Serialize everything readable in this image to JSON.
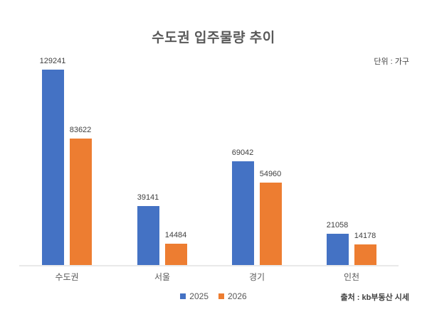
{
  "chart": {
    "title": "수도권 입주물량 추이",
    "unit_label": "단위 : 가구",
    "source_label": "출처 : kb부동산 시세"
  },
  "chart_data": {
    "type": "bar",
    "title": "수도권 입주물량 추이",
    "unit": "가구",
    "source": "kb부동산 시세",
    "categories": [
      "수도권",
      "서울",
      "경기",
      "인천"
    ],
    "series": [
      {
        "name": "2025",
        "color": "#4472C4",
        "values": [
          129241,
          39141,
          69042,
          21058
        ]
      },
      {
        "name": "2026",
        "color": "#ED7D31",
        "values": [
          83622,
          14484,
          54960,
          14178
        ]
      }
    ],
    "data_labels": true,
    "grid": false,
    "legend_position": "bottom",
    "ylim": [
      0,
      140000
    ],
    "baseline_color": "#e9e9e9"
  }
}
